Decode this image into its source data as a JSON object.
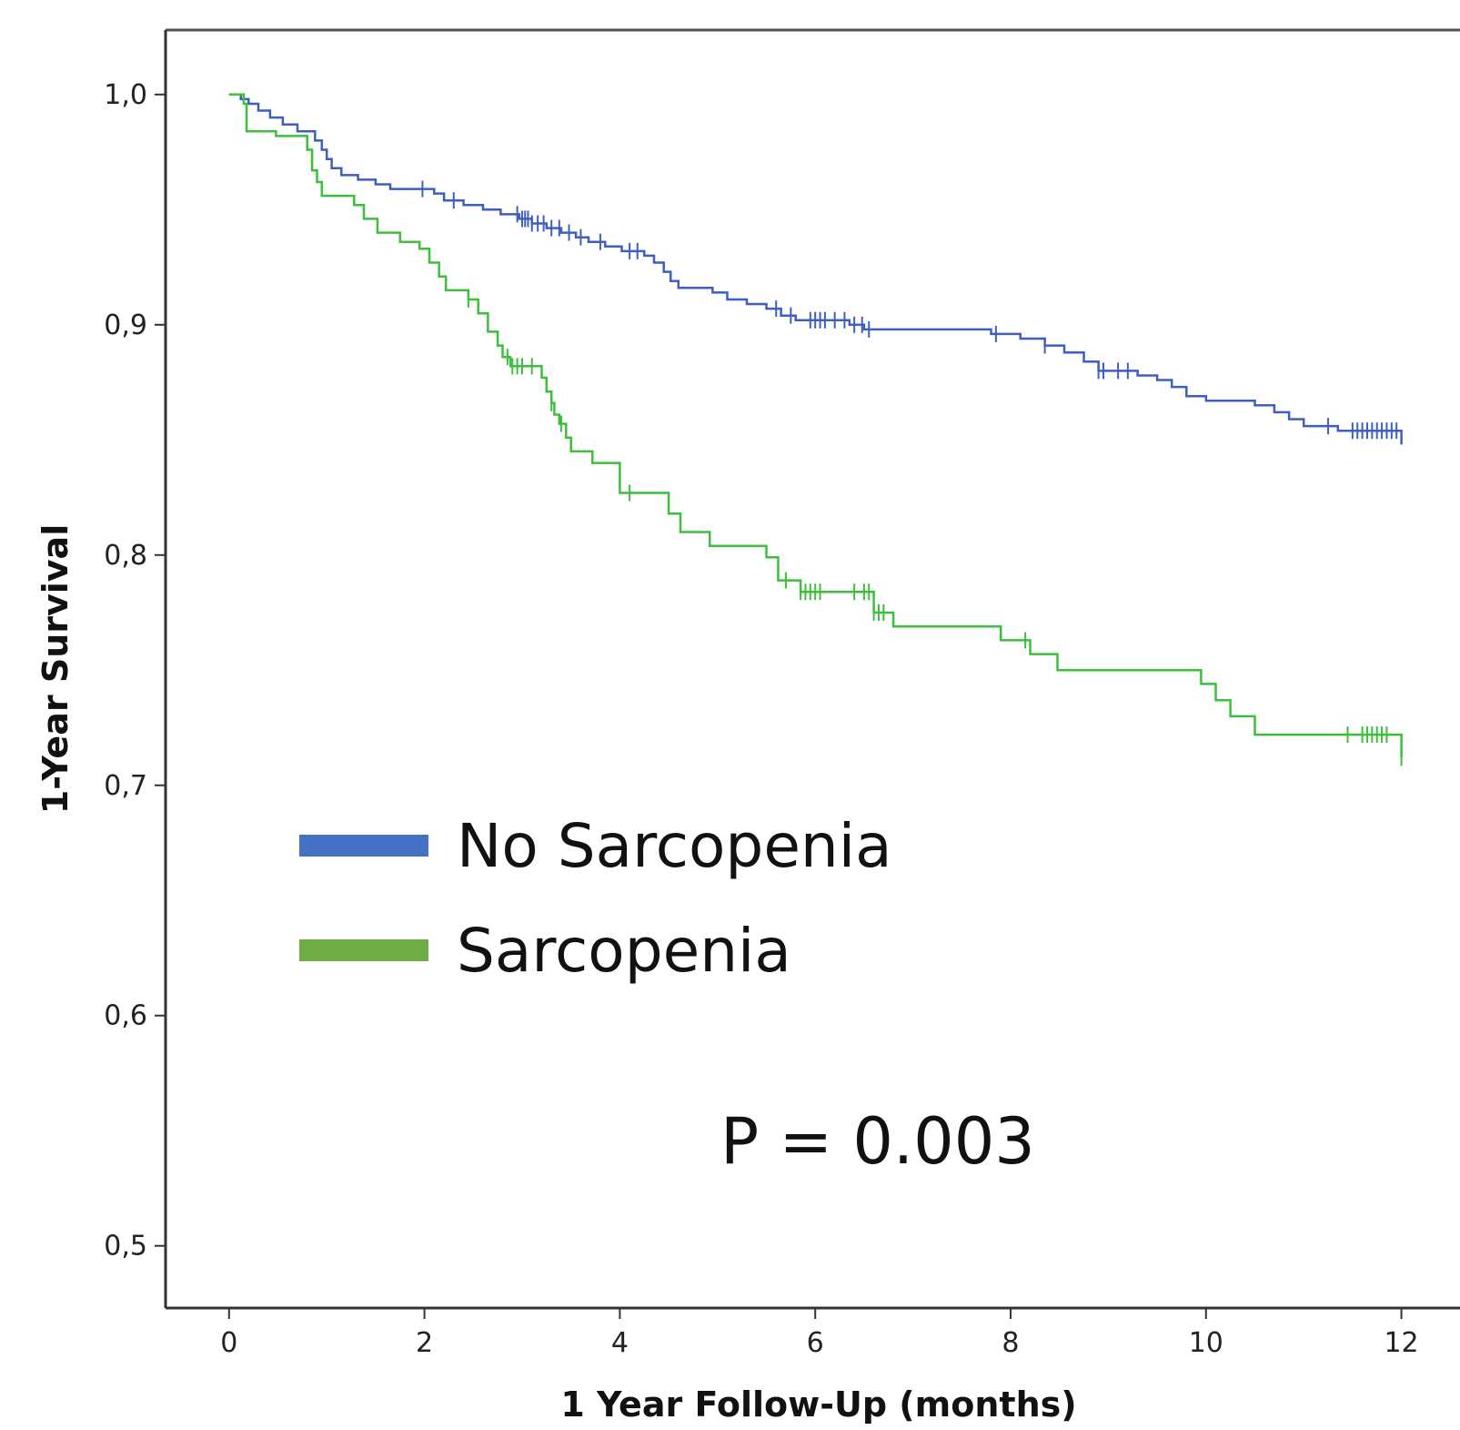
{
  "chart_data": {
    "type": "line",
    "title": "",
    "xlabel": "1 Year Follow-Up (months)",
    "ylabel": "1-Year Survival",
    "xlim": [
      -0.65,
      12.6
    ],
    "ylim": [
      0.473,
      1.028
    ],
    "x_ticks": [
      0,
      2,
      4,
      6,
      8,
      10,
      12
    ],
    "x_tick_labels": [
      "0",
      "2",
      "4",
      "6",
      "8",
      "10",
      "12"
    ],
    "y_ticks": [
      0.5,
      0.6,
      0.7,
      0.8,
      0.9,
      1.0
    ],
    "y_tick_labels": [
      "0,5",
      "0,6",
      "0,7",
      "0,8",
      "0,9",
      "1,0"
    ],
    "grid": false,
    "legend_position": "center-left",
    "annotation": "P = 0.003",
    "series": [
      {
        "name": "No Sarcopenia",
        "color": "#3f5fc0",
        "legend_color": "#4472c4",
        "step_points": [
          [
            0,
            1.0
          ],
          [
            0.12,
            0.998
          ],
          [
            0.2,
            0.996
          ],
          [
            0.3,
            0.993
          ],
          [
            0.42,
            0.99
          ],
          [
            0.55,
            0.987
          ],
          [
            0.7,
            0.984
          ],
          [
            0.88,
            0.98
          ],
          [
            0.95,
            0.976
          ],
          [
            1.0,
            0.972
          ],
          [
            1.05,
            0.968
          ],
          [
            1.15,
            0.965
          ],
          [
            1.32,
            0.963
          ],
          [
            1.5,
            0.961
          ],
          [
            1.65,
            0.959
          ],
          [
            2.1,
            0.957
          ],
          [
            2.2,
            0.954
          ],
          [
            2.4,
            0.952
          ],
          [
            2.6,
            0.95
          ],
          [
            2.78,
            0.948
          ],
          [
            2.97,
            0.946
          ],
          [
            3.1,
            0.944
          ],
          [
            3.25,
            0.942
          ],
          [
            3.4,
            0.94
          ],
          [
            3.55,
            0.938
          ],
          [
            3.68,
            0.936
          ],
          [
            3.85,
            0.934
          ],
          [
            4.02,
            0.932
          ],
          [
            4.25,
            0.93
          ],
          [
            4.35,
            0.927
          ],
          [
            4.45,
            0.923
          ],
          [
            4.52,
            0.919
          ],
          [
            4.6,
            0.916
          ],
          [
            4.95,
            0.914
          ],
          [
            5.1,
            0.911
          ],
          [
            5.3,
            0.909
          ],
          [
            5.5,
            0.907
          ],
          [
            5.65,
            0.904
          ],
          [
            5.8,
            0.902
          ],
          [
            6.35,
            0.9
          ],
          [
            6.5,
            0.898
          ],
          [
            7.8,
            0.896
          ],
          [
            8.1,
            0.894
          ],
          [
            8.35,
            0.891
          ],
          [
            8.55,
            0.888
          ],
          [
            8.75,
            0.884
          ],
          [
            8.9,
            0.88
          ],
          [
            9.3,
            0.878
          ],
          [
            9.5,
            0.876
          ],
          [
            9.65,
            0.873
          ],
          [
            9.8,
            0.869
          ],
          [
            10.0,
            0.867
          ],
          [
            10.5,
            0.865
          ],
          [
            10.7,
            0.862
          ],
          [
            10.85,
            0.859
          ],
          [
            11.0,
            0.856
          ],
          [
            11.35,
            0.854
          ],
          [
            12.0,
            0.848
          ]
        ],
        "censor_times": [
          1.98,
          2.3,
          2.95,
          3.0,
          3.03,
          3.06,
          3.1,
          3.16,
          3.22,
          3.3,
          3.38,
          3.48,
          3.6,
          3.8,
          4.1,
          4.18,
          5.6,
          5.75,
          5.95,
          6.0,
          6.05,
          6.1,
          6.2,
          6.3,
          6.4,
          6.48,
          6.55,
          7.85,
          8.35,
          8.9,
          8.95,
          9.1,
          9.2,
          11.25,
          11.5,
          11.55,
          11.6,
          11.65,
          11.7,
          11.75,
          11.8,
          11.85,
          11.9,
          11.95
        ]
      },
      {
        "name": "Sarcopenia",
        "color": "#3cbf3c",
        "legend_color": "#70ad47",
        "step_points": [
          [
            0,
            1.0
          ],
          [
            0.15,
            0.996
          ],
          [
            0.18,
            0.984
          ],
          [
            0.48,
            0.982
          ],
          [
            0.8,
            0.976
          ],
          [
            0.85,
            0.967
          ],
          [
            0.9,
            0.962
          ],
          [
            0.95,
            0.956
          ],
          [
            1.28,
            0.952
          ],
          [
            1.38,
            0.946
          ],
          [
            1.52,
            0.94
          ],
          [
            1.75,
            0.936
          ],
          [
            1.95,
            0.933
          ],
          [
            2.05,
            0.927
          ],
          [
            2.15,
            0.921
          ],
          [
            2.22,
            0.915
          ],
          [
            2.45,
            0.911
          ],
          [
            2.55,
            0.905
          ],
          [
            2.65,
            0.897
          ],
          [
            2.75,
            0.891
          ],
          [
            2.8,
            0.886
          ],
          [
            2.88,
            0.882
          ],
          [
            3.2,
            0.877
          ],
          [
            3.25,
            0.871
          ],
          [
            3.3,
            0.866
          ],
          [
            3.33,
            0.861
          ],
          [
            3.38,
            0.857
          ],
          [
            3.45,
            0.851
          ],
          [
            3.5,
            0.845
          ],
          [
            3.72,
            0.84
          ],
          [
            4.0,
            0.827
          ],
          [
            4.5,
            0.818
          ],
          [
            4.62,
            0.81
          ],
          [
            4.92,
            0.804
          ],
          [
            5.5,
            0.799
          ],
          [
            5.62,
            0.789
          ],
          [
            5.85,
            0.784
          ],
          [
            6.6,
            0.775
          ],
          [
            6.8,
            0.769
          ],
          [
            7.9,
            0.763
          ],
          [
            8.2,
            0.757
          ],
          [
            8.48,
            0.75
          ],
          [
            9.95,
            0.744
          ],
          [
            10.1,
            0.737
          ],
          [
            10.25,
            0.73
          ],
          [
            10.5,
            0.722
          ],
          [
            12.0,
            0.712
          ]
        ],
        "censor_times": [
          2.45,
          2.85,
          2.9,
          2.95,
          3.0,
          3.1,
          3.3,
          3.4,
          4.1,
          5.7,
          5.85,
          5.9,
          5.95,
          6.0,
          6.05,
          6.4,
          6.5,
          6.55,
          6.6,
          6.65,
          6.7,
          8.15,
          11.45,
          11.6,
          11.65,
          11.7,
          11.75,
          11.8,
          11.85,
          12.0
        ]
      }
    ]
  }
}
